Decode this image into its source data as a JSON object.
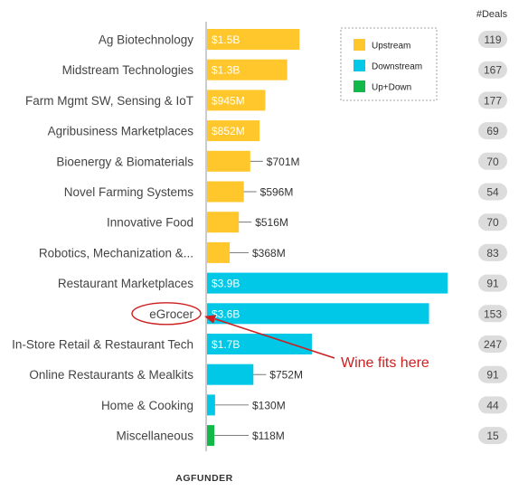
{
  "chart_data": {
    "type": "bar",
    "orientation": "horizontal",
    "categories": [
      "Ag Biotechnology",
      "Midstream Technologies",
      "Farm Mgmt SW, Sensing & IoT",
      "Agribusiness Marketplaces",
      "Bioenergy & Biomaterials",
      "Novel Farming Systems",
      "Innovative Food",
      "Robotics, Mechanization &...",
      "Restaurant Marketplaces",
      "eGrocer",
      "In-Store Retail & Restaurant Tech",
      "Online Restaurants & Mealkits",
      "Home & Cooking",
      "Miscellaneous"
    ],
    "values_musd": [
      1500,
      1300,
      945,
      852,
      701,
      596,
      516,
      368,
      3900,
      3600,
      1700,
      752,
      130,
      118
    ],
    "value_labels": [
      "$1.5B",
      "$1.3B",
      "$945M",
      "$852M",
      "$701M",
      "$596M",
      "$516M",
      "$368M",
      "$3.9B",
      "$3.6B",
      "$1.7B",
      "$752M",
      "$130M",
      "$118M"
    ],
    "segment": [
      "Upstream",
      "Upstream",
      "Upstream",
      "Upstream",
      "Upstream",
      "Upstream",
      "Upstream",
      "Upstream",
      "Downstream",
      "Downstream",
      "Downstream",
      "Downstream",
      "Downstream",
      "Up+Down"
    ],
    "deals": [
      119,
      167,
      177,
      69,
      70,
      54,
      70,
      83,
      91,
      153,
      247,
      91,
      44,
      15
    ],
    "deals_header": "#Deals",
    "legend": [
      {
        "name": "Upstream",
        "color": "#FFC72C"
      },
      {
        "name": "Downstream",
        "color": "#00C8E6"
      },
      {
        "name": "Up+Down",
        "color": "#12B84A"
      }
    ],
    "legend_position": "top-right",
    "annotation": {
      "text": "Wine fits here",
      "target": "eGrocer",
      "color": "#CC1F1F"
    },
    "xlim": [
      0,
      3900
    ],
    "grid": false
  },
  "footer": {
    "logo_text": "AGFUNDER"
  }
}
